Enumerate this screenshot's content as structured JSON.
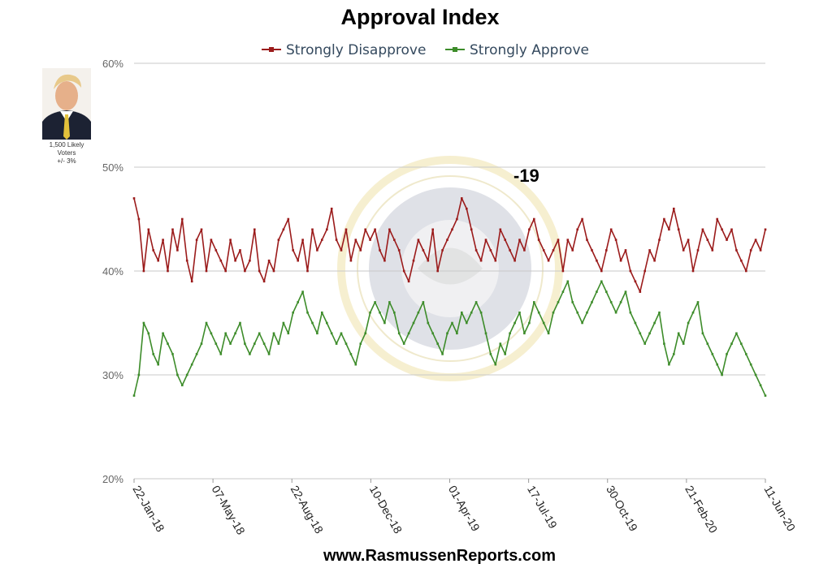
{
  "chart_data": {
    "type": "line",
    "title": "Approval Index",
    "y_ticks": [
      "60%",
      "50%",
      "40%",
      "30%",
      "20%"
    ],
    "ylim": [
      20,
      60
    ],
    "x_ticks": [
      "22-Jan-18",
      "07-May-18",
      "22-Aug-18",
      "10-Dec-18",
      "01-Apr-19",
      "17-Jul-19",
      "30-Oct-19",
      "21-Feb-20",
      "11-Jun-20"
    ],
    "grid": true,
    "legend_placement": "top",
    "annotation": "-19",
    "series": [
      {
        "name": "Strongly Disapprove",
        "color": "#9b1b1b",
        "values": [
          47,
          45,
          40,
          44,
          42,
          41,
          43,
          40,
          44,
          42,
          45,
          41,
          39,
          43,
          44,
          40,
          43,
          42,
          41,
          40,
          43,
          41,
          42,
          40,
          41,
          44,
          40,
          39,
          41,
          40,
          43,
          44,
          45,
          42,
          41,
          43,
          40,
          44,
          42,
          43,
          44,
          46,
          43,
          42,
          44,
          41,
          43,
          42,
          44,
          43,
          44,
          42,
          41,
          44,
          43,
          42,
          40,
          39,
          41,
          43,
          42,
          41,
          44,
          40,
          42,
          43,
          44,
          45,
          47,
          46,
          44,
          42,
          41,
          43,
          42,
          41,
          44,
          43,
          42,
          41,
          43,
          42,
          44,
          45,
          43,
          42,
          41,
          42,
          43,
          40,
          43,
          42,
          44,
          45,
          43,
          42,
          41,
          40,
          42,
          44,
          43,
          41,
          42,
          40,
          39,
          38,
          40,
          42,
          41,
          43,
          45,
          44,
          46,
          44,
          42,
          43,
          40,
          42,
          44,
          43,
          42,
          45,
          44,
          43,
          44,
          42,
          41,
          40,
          42,
          43,
          42,
          44
        ]
      },
      {
        "name": "Strongly Approve",
        "color": "#3d8c2a",
        "values": [
          28,
          30,
          35,
          34,
          32,
          31,
          34,
          33,
          32,
          30,
          29,
          30,
          31,
          32,
          33,
          35,
          34,
          33,
          32,
          34,
          33,
          34,
          35,
          33,
          32,
          33,
          34,
          33,
          32,
          34,
          33,
          35,
          34,
          36,
          37,
          38,
          36,
          35,
          34,
          36,
          35,
          34,
          33,
          34,
          33,
          32,
          31,
          33,
          34,
          36,
          37,
          36,
          35,
          37,
          36,
          34,
          33,
          34,
          35,
          36,
          37,
          35,
          34,
          33,
          32,
          34,
          35,
          34,
          36,
          35,
          36,
          37,
          36,
          34,
          32,
          31,
          33,
          32,
          34,
          35,
          36,
          34,
          35,
          37,
          36,
          35,
          34,
          36,
          37,
          38,
          39,
          37,
          36,
          35,
          36,
          37,
          38,
          39,
          38,
          37,
          36,
          37,
          38,
          36,
          35,
          34,
          33,
          34,
          35,
          36,
          33,
          31,
          32,
          34,
          33,
          35,
          36,
          37,
          34,
          33,
          32,
          31,
          30,
          32,
          33,
          34,
          33,
          32,
          31,
          30,
          29,
          28
        ]
      }
    ]
  },
  "sidebar": {
    "caption_line1": "1,500 Likely",
    "caption_line2": "Voters",
    "caption_line3": "+/- 3%"
  },
  "footer": "www.RasmussenReports.com",
  "colors": {
    "disapprove": "#9b1b1b",
    "approve": "#3d8c2a",
    "grid": "#c8c8c8"
  }
}
